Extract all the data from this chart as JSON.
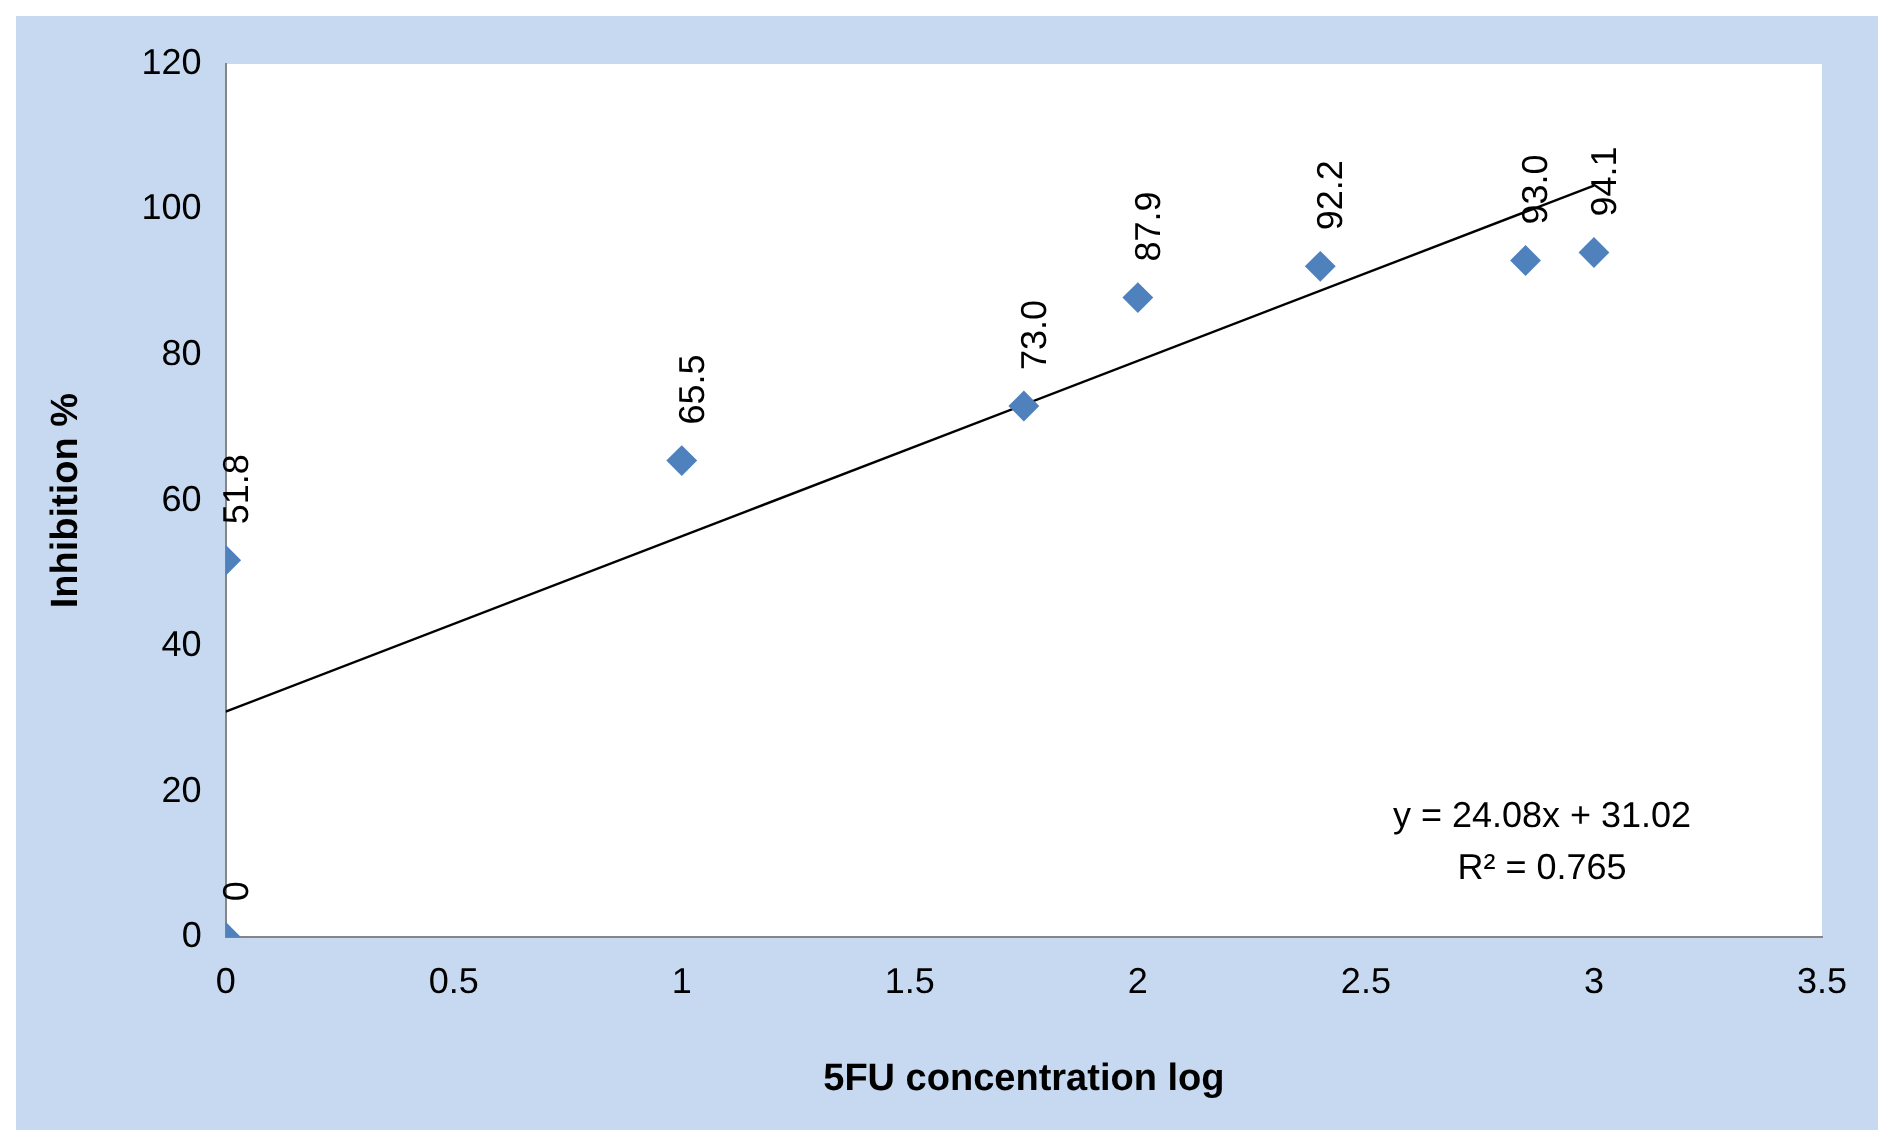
{
  "chart_data": {
    "type": "scatter",
    "xlabel": "5FU concentration log",
    "ylabel": "Inhibition %",
    "xlim": [
      0,
      3.5
    ],
    "xticks": [
      0,
      0.5,
      1,
      1.5,
      2,
      2.5,
      3,
      3.5
    ],
    "ylim": [
      0,
      120
    ],
    "yticks": [
      0,
      20,
      40,
      60,
      80,
      100,
      120
    ],
    "grid": false,
    "legend": false,
    "marker": "diamond",
    "series": [
      {
        "color": "#4f81bd",
        "x": [
          0,
          0,
          1,
          1.75,
          2,
          2.4,
          2.85,
          3
        ],
        "values": [
          0,
          51.8,
          65.5,
          73.0,
          87.9,
          92.2,
          93.0,
          94.1
        ],
        "value_labels": [
          "0",
          "51.8",
          "65.5",
          "73.0",
          "87.9",
          "92.2",
          "93.0",
          "94.1"
        ]
      },
      {
        "type": "line",
        "color": "#000000",
        "marker": "none",
        "line_style": "solid",
        "x": [
          0,
          3
        ],
        "values": [
          31,
          103.3
        ]
      }
    ],
    "annotations": [
      "y = 24.08x + 31.02",
      "R² = 0.765"
    ]
  }
}
